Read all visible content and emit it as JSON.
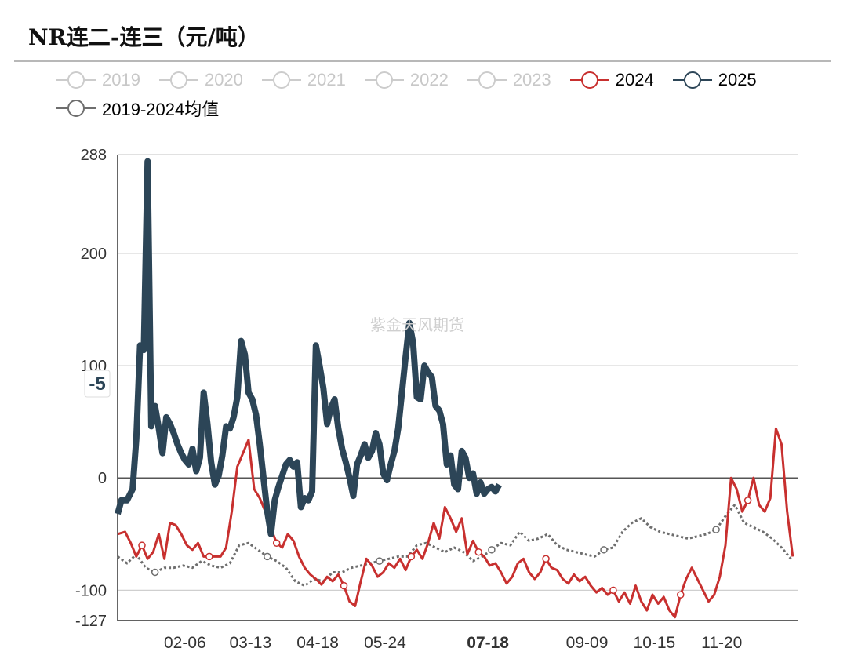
{
  "title": "NR连二-连三（元/吨）",
  "watermark": "紫金天风期货",
  "legend": [
    {
      "label": "2019",
      "color": "#cccccc",
      "state": "off"
    },
    {
      "label": "2020",
      "color": "#cccccc",
      "state": "off"
    },
    {
      "label": "2021",
      "color": "#cccccc",
      "state": "off"
    },
    {
      "label": "2022",
      "color": "#cccccc",
      "state": "off"
    },
    {
      "label": "2023",
      "color": "#cccccc",
      "state": "off"
    },
    {
      "label": "2024",
      "color": "#c8302f",
      "state": "on"
    },
    {
      "label": "2025",
      "color": "#2c4557",
      "state": "on"
    },
    {
      "label": "2019-2024均值",
      "color": "#6e6e6e",
      "state": "on"
    }
  ],
  "tooltip": {
    "date": "07-18",
    "value_label": "-5"
  },
  "chart_data": {
    "type": "line",
    "title": "NR连二-连三（元/吨）",
    "xlabel": "",
    "ylabel": "",
    "ylim": [
      -127,
      288
    ],
    "y_ticks": [
      288,
      200,
      100,
      0,
      -100,
      -127
    ],
    "x_ticks": [
      "02-06",
      "03-13",
      "04-18",
      "05-24",
      "07-18",
      "09-09",
      "10-15",
      "11-20"
    ],
    "x_domain_days": [
      1,
      365
    ],
    "grid": true,
    "legend_position": "top",
    "series": [
      {
        "name": "2024",
        "color": "#c8302f",
        "style": "solid",
        "points": [
          [
            1,
            -50
          ],
          [
            5,
            -48
          ],
          [
            8,
            -58
          ],
          [
            11,
            -70
          ],
          [
            14,
            -60
          ],
          [
            17,
            -72
          ],
          [
            20,
            -66
          ],
          [
            23,
            -50
          ],
          [
            26,
            -72
          ],
          [
            29,
            -40
          ],
          [
            32,
            -42
          ],
          [
            35,
            -50
          ],
          [
            38,
            -60
          ],
          [
            41,
            -64
          ],
          [
            44,
            -58
          ],
          [
            47,
            -70
          ],
          [
            50,
            -70
          ],
          [
            53,
            -70
          ],
          [
            56,
            -70
          ],
          [
            59,
            -62
          ],
          [
            62,
            -30
          ],
          [
            65,
            10
          ],
          [
            68,
            22
          ],
          [
            71,
            34
          ],
          [
            74,
            -10
          ],
          [
            77,
            -18
          ],
          [
            80,
            -30
          ],
          [
            83,
            -45
          ],
          [
            86,
            -58
          ],
          [
            89,
            -62
          ],
          [
            92,
            -50
          ],
          [
            95,
            -56
          ],
          [
            98,
            -70
          ],
          [
            101,
            -80
          ],
          [
            104,
            -86
          ],
          [
            107,
            -90
          ],
          [
            110,
            -95
          ],
          [
            113,
            -88
          ],
          [
            116,
            -92
          ],
          [
            119,
            -86
          ],
          [
            122,
            -96
          ],
          [
            125,
            -110
          ],
          [
            128,
            -114
          ],
          [
            131,
            -92
          ],
          [
            134,
            -72
          ],
          [
            137,
            -78
          ],
          [
            140,
            -88
          ],
          [
            143,
            -84
          ],
          [
            146,
            -76
          ],
          [
            149,
            -80
          ],
          [
            152,
            -72
          ],
          [
            155,
            -82
          ],
          [
            158,
            -70
          ],
          [
            161,
            -64
          ],
          [
            164,
            -72
          ],
          [
            167,
            -58
          ],
          [
            170,
            -40
          ],
          [
            173,
            -54
          ],
          [
            176,
            -26
          ],
          [
            179,
            -36
          ],
          [
            182,
            -48
          ],
          [
            185,
            -36
          ],
          [
            188,
            -68
          ],
          [
            191,
            -56
          ],
          [
            194,
            -66
          ],
          [
            197,
            -70
          ],
          [
            200,
            -78
          ],
          [
            203,
            -76
          ],
          [
            206,
            -84
          ],
          [
            209,
            -94
          ],
          [
            212,
            -88
          ],
          [
            215,
            -76
          ],
          [
            218,
            -72
          ],
          [
            221,
            -84
          ],
          [
            224,
            -90
          ],
          [
            227,
            -84
          ],
          [
            230,
            -72
          ],
          [
            233,
            -80
          ],
          [
            236,
            -82
          ],
          [
            239,
            -90
          ],
          [
            242,
            -94
          ],
          [
            245,
            -86
          ],
          [
            248,
            -92
          ],
          [
            251,
            -88
          ],
          [
            254,
            -96
          ],
          [
            257,
            -102
          ],
          [
            260,
            -98
          ],
          [
            263,
            -104
          ],
          [
            266,
            -100
          ],
          [
            269,
            -110
          ],
          [
            272,
            -102
          ],
          [
            275,
            -112
          ],
          [
            278,
            -96
          ],
          [
            281,
            -110
          ],
          [
            284,
            -118
          ],
          [
            287,
            -104
          ],
          [
            290,
            -112
          ],
          [
            293,
            -106
          ],
          [
            296,
            -118
          ],
          [
            299,
            -124
          ],
          [
            302,
            -104
          ],
          [
            305,
            -90
          ],
          [
            308,
            -80
          ],
          [
            311,
            -90
          ],
          [
            314,
            -100
          ],
          [
            317,
            -110
          ],
          [
            320,
            -104
          ],
          [
            323,
            -88
          ],
          [
            326,
            -60
          ],
          [
            329,
            0
          ],
          [
            332,
            -10
          ],
          [
            335,
            -30
          ],
          [
            338,
            -20
          ],
          [
            341,
            0
          ],
          [
            344,
            -24
          ],
          [
            347,
            -30
          ],
          [
            350,
            -18
          ],
          [
            353,
            44
          ],
          [
            356,
            30
          ],
          [
            359,
            -30
          ],
          [
            362,
            -70
          ]
        ]
      },
      {
        "name": "2025",
        "color": "#2c4557",
        "style": "solid",
        "points": [
          [
            1,
            -32
          ],
          [
            3,
            -20
          ],
          [
            6,
            -20
          ],
          [
            9,
            -10
          ],
          [
            11,
            35
          ],
          [
            13,
            118
          ],
          [
            15,
            114
          ],
          [
            17,
            282
          ],
          [
            19,
            46
          ],
          [
            21,
            64
          ],
          [
            23,
            44
          ],
          [
            25,
            22
          ],
          [
            27,
            54
          ],
          [
            29,
            48
          ],
          [
            31,
            40
          ],
          [
            33,
            30
          ],
          [
            35,
            22
          ],
          [
            37,
            16
          ],
          [
            39,
            12
          ],
          [
            41,
            26
          ],
          [
            43,
            6
          ],
          [
            45,
            18
          ],
          [
            47,
            76
          ],
          [
            49,
            48
          ],
          [
            51,
            14
          ],
          [
            53,
            -6
          ],
          [
            55,
            2
          ],
          [
            57,
            20
          ],
          [
            59,
            46
          ],
          [
            61,
            44
          ],
          [
            63,
            54
          ],
          [
            65,
            72
          ],
          [
            67,
            122
          ],
          [
            69,
            110
          ],
          [
            71,
            76
          ],
          [
            73,
            70
          ],
          [
            75,
            56
          ],
          [
            77,
            30
          ],
          [
            79,
            0
          ],
          [
            81,
            -30
          ],
          [
            83,
            -50
          ],
          [
            85,
            -20
          ],
          [
            87,
            -8
          ],
          [
            89,
            2
          ],
          [
            91,
            12
          ],
          [
            93,
            16
          ],
          [
            95,
            10
          ],
          [
            97,
            14
          ],
          [
            99,
            -26
          ],
          [
            101,
            -18
          ],
          [
            103,
            -20
          ],
          [
            105,
            -12
          ],
          [
            107,
            118
          ],
          [
            109,
            100
          ],
          [
            111,
            80
          ],
          [
            113,
            48
          ],
          [
            115,
            62
          ],
          [
            117,
            70
          ],
          [
            119,
            44
          ],
          [
            121,
            26
          ],
          [
            123,
            14
          ],
          [
            125,
            0
          ],
          [
            127,
            -16
          ],
          [
            129,
            12
          ],
          [
            131,
            20
          ],
          [
            133,
            30
          ],
          [
            135,
            18
          ],
          [
            137,
            24
          ],
          [
            139,
            40
          ],
          [
            141,
            30
          ],
          [
            143,
            4
          ],
          [
            145,
            -2
          ],
          [
            147,
            12
          ],
          [
            149,
            24
          ],
          [
            151,
            44
          ],
          [
            153,
            76
          ],
          [
            155,
            108
          ],
          [
            157,
            138
          ],
          [
            159,
            120
          ],
          [
            161,
            72
          ],
          [
            163,
            70
          ],
          [
            165,
            100
          ],
          [
            167,
            94
          ],
          [
            169,
            90
          ],
          [
            171,
            64
          ],
          [
            173,
            60
          ],
          [
            175,
            48
          ],
          [
            177,
            12
          ],
          [
            179,
            20
          ],
          [
            181,
            -6
          ],
          [
            183,
            -10
          ],
          [
            185,
            24
          ],
          [
            187,
            18
          ],
          [
            189,
            0
          ],
          [
            191,
            4
          ],
          [
            193,
            -14
          ],
          [
            195,
            -4
          ],
          [
            197,
            -14
          ],
          [
            199,
            -10
          ],
          [
            201,
            -8
          ],
          [
            203,
            -12
          ],
          [
            205,
            -6
          ]
        ]
      },
      {
        "name": "2019-2024均值",
        "color": "#6e6e6e",
        "style": "dotted",
        "points": [
          [
            1,
            -70
          ],
          [
            6,
            -76
          ],
          [
            11,
            -68
          ],
          [
            16,
            -80
          ],
          [
            21,
            -84
          ],
          [
            26,
            -80
          ],
          [
            31,
            -80
          ],
          [
            36,
            -78
          ],
          [
            41,
            -80
          ],
          [
            46,
            -74
          ],
          [
            51,
            -78
          ],
          [
            56,
            -80
          ],
          [
            61,
            -76
          ],
          [
            66,
            -60
          ],
          [
            71,
            -58
          ],
          [
            76,
            -64
          ],
          [
            81,
            -70
          ],
          [
            86,
            -74
          ],
          [
            91,
            -80
          ],
          [
            96,
            -92
          ],
          [
            101,
            -96
          ],
          [
            106,
            -90
          ],
          [
            111,
            -92
          ],
          [
            116,
            -84
          ],
          [
            121,
            -84
          ],
          [
            126,
            -80
          ],
          [
            131,
            -78
          ],
          [
            136,
            -76
          ],
          [
            141,
            -74
          ],
          [
            146,
            -72
          ],
          [
            151,
            -70
          ],
          [
            156,
            -70
          ],
          [
            161,
            -60
          ],
          [
            166,
            -58
          ],
          [
            171,
            -62
          ],
          [
            176,
            -66
          ],
          [
            181,
            -62
          ],
          [
            186,
            -66
          ],
          [
            191,
            -74
          ],
          [
            196,
            -70
          ],
          [
            201,
            -64
          ],
          [
            206,
            -58
          ],
          [
            211,
            -60
          ],
          [
            216,
            -48
          ],
          [
            221,
            -56
          ],
          [
            226,
            -54
          ],
          [
            231,
            -50
          ],
          [
            236,
            -60
          ],
          [
            241,
            -64
          ],
          [
            246,
            -66
          ],
          [
            251,
            -68
          ],
          [
            256,
            -70
          ],
          [
            261,
            -64
          ],
          [
            266,
            -62
          ],
          [
            271,
            -48
          ],
          [
            276,
            -40
          ],
          [
            281,
            -36
          ],
          [
            286,
            -44
          ],
          [
            291,
            -48
          ],
          [
            296,
            -50
          ],
          [
            301,
            -52
          ],
          [
            306,
            -54
          ],
          [
            311,
            -52
          ],
          [
            316,
            -50
          ],
          [
            321,
            -46
          ],
          [
            326,
            -34
          ],
          [
            331,
            -24
          ],
          [
            336,
            -40
          ],
          [
            341,
            -44
          ],
          [
            346,
            -48
          ],
          [
            351,
            -54
          ],
          [
            356,
            -62
          ],
          [
            361,
            -72
          ]
        ]
      }
    ]
  }
}
